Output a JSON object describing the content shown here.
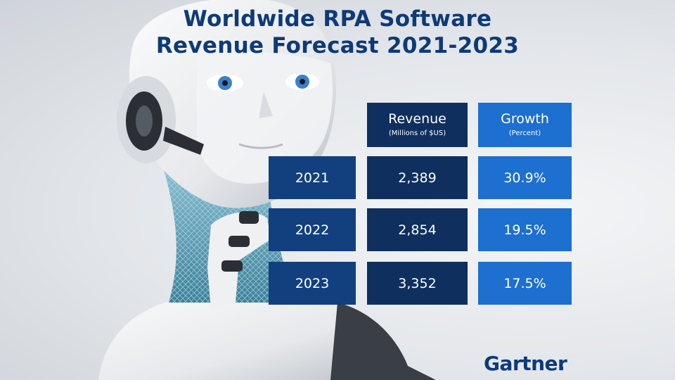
{
  "title_line1": "Worldwide RPA Software",
  "title_line2": "Revenue Forecast 2021-2023",
  "brand": "Gartner",
  "columns": [
    {
      "label": "Revenue",
      "sublabel": "(Millions of $US)"
    },
    {
      "label": "Growth",
      "sublabel": "(Percent)"
    }
  ],
  "rows": [
    {
      "year": "2021",
      "revenue": "2,389",
      "growth": "30.9%"
    },
    {
      "year": "2022",
      "revenue": "2,854",
      "growth": "19.5%"
    },
    {
      "year": "2023",
      "revenue": "3,352",
      "growth": "17.5%"
    }
  ],
  "colors": {
    "title": "#0d3a78",
    "year_cell": "#12407f",
    "revenue_cell": "#0f2f5f",
    "growth_cell": "#1d6fd0"
  },
  "chart_data": {
    "type": "table",
    "title": "Worldwide RPA Software Revenue Forecast 2021-2023",
    "columns": [
      "Revenue (Millions of $US)",
      "Growth (Percent)"
    ],
    "categories": [
      "2021",
      "2022",
      "2023"
    ],
    "series": [
      {
        "name": "Revenue",
        "values": [
          2389,
          2854,
          3352
        ]
      },
      {
        "name": "Growth",
        "values": [
          30.9,
          19.5,
          17.5
        ]
      }
    ]
  }
}
